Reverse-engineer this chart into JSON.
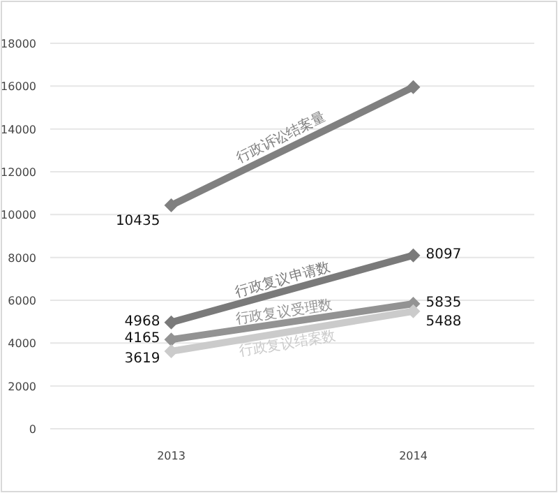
{
  "chart_data": {
    "type": "line",
    "categories": [
      "2013",
      "2014"
    ],
    "series": [
      {
        "name": "行政诉讼结案量",
        "color": "#808080",
        "values": [
          10435,
          15950
        ],
        "value_labels": [
          "10435",
          null
        ]
      },
      {
        "name": "行政复议申请数",
        "color": "#7a7a7a",
        "values": [
          4968,
          8097
        ],
        "value_labels": [
          "4968",
          "8097"
        ]
      },
      {
        "name": "行政复议受理数",
        "color": "#939393",
        "values": [
          4165,
          5835
        ],
        "value_labels": [
          "4165",
          "5835"
        ]
      },
      {
        "name": "行政复议结案数",
        "color": "#cbcbcb",
        "values": [
          3619,
          5488
        ],
        "value_labels": [
          "3619",
          "5488"
        ]
      }
    ],
    "ylim": [
      0,
      18000
    ],
    "yticks": [
      0,
      2000,
      4000,
      6000,
      8000,
      10000,
      12000,
      14000,
      16000,
      18000
    ],
    "grid": "y",
    "marker": "diamond",
    "line_style": "solid"
  }
}
